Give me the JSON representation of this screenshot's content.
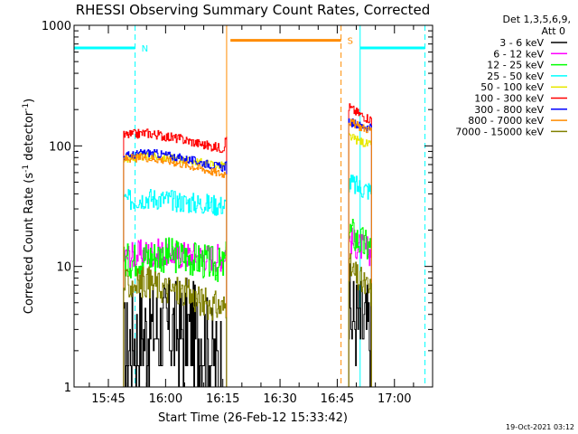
{
  "chart_data": {
    "type": "line",
    "title": "RHESSI Observing Summary Count Rates, Corrected",
    "xlabel": "Start Time (26-Feb-12 15:33:42)",
    "ylabel_parts": [
      "Corrected Count Rate (s",
      "-1",
      " detector",
      "-1",
      ")"
    ],
    "y_scale": "log",
    "ylim": [
      1,
      1000
    ],
    "y_ticks": [
      {
        "value": 1,
        "label": "1"
      },
      {
        "value": 10,
        "label": "10"
      },
      {
        "value": 100,
        "label": "100"
      },
      {
        "value": 1000,
        "label": "1000"
      }
    ],
    "xlim": [
      "15:36",
      "17:10"
    ],
    "x_ticks": [
      "15:45",
      "16:00",
      "16:15",
      "16:30",
      "16:45",
      "17:00"
    ],
    "legend": {
      "position": "outside-top-right",
      "header": [
        "Det 1,3,5,6,9,",
        "Att 0"
      ],
      "entries": [
        {
          "label": "3 - 6 keV",
          "color": "#000000"
        },
        {
          "label": "6 - 12 keV",
          "color": "#ff00ff"
        },
        {
          "label": "12 - 25 keV",
          "color": "#00ff00"
        },
        {
          "label": "25 - 50 keV",
          "color": "#00ffff"
        },
        {
          "label": "50 - 100 keV",
          "color": "#e8e800"
        },
        {
          "label": "100 - 300 keV",
          "color": "#ff0000"
        },
        {
          "label": "300 - 800 keV",
          "color": "#0000ff"
        },
        {
          "label": "800 - 7000 keV",
          "color": "#ff8c00"
        },
        {
          "label": "7000 - 15000 keV",
          "color": "#808000"
        }
      ]
    },
    "series": [
      {
        "name": "3 - 6 keV",
        "color": "#000000",
        "segments": [
          {
            "x": [
              "15:49",
              "15:52",
              "15:56",
              "16:00",
              "16:05",
              "16:10",
              "16:13",
              "16:15"
            ],
            "y": [
              2,
              2.5,
              3,
              3,
              3,
              2.5,
              1.5,
              2
            ]
          },
          {
            "x": [
              "16:48",
              "16:50",
              "16:52",
              "16:54"
            ],
            "y": [
              4,
              3.5,
              3,
              2.5
            ]
          }
        ]
      },
      {
        "name": "6 - 12 keV",
        "color": "#ff00ff",
        "segments": [
          {
            "x": [
              "15:49",
              "15:55",
              "16:00",
              "16:05",
              "16:10",
              "16:15",
              "16:16"
            ],
            "y": [
              12,
              13,
              13,
              12.5,
              12,
              12,
              15
            ]
          },
          {
            "x": [
              "16:48",
              "16:50",
              "16:52",
              "16:54"
            ],
            "y": [
              17,
              15,
              14,
              13
            ]
          }
        ]
      },
      {
        "name": "12 - 25 keV",
        "color": "#00ff00",
        "segments": [
          {
            "x": [
              "15:49",
              "15:55",
              "16:00",
              "16:05",
              "16:10",
              "16:15",
              "16:16"
            ],
            "y": [
              11,
              12,
              12.5,
              12,
              11,
              10,
              12
            ]
          },
          {
            "x": [
              "16:48",
              "16:50",
              "16:52",
              "16:54"
            ],
            "y": [
              20,
              17,
              15,
              14
            ]
          }
        ]
      },
      {
        "name": "25 - 50 keV",
        "color": "#00ffff",
        "segments": [
          {
            "x": [
              "15:49",
              "15:55",
              "16:00",
              "16:05",
              "16:10",
              "16:15",
              "16:16"
            ],
            "y": [
              35,
              37,
              36,
              34,
              33,
              32,
              32
            ]
          },
          {
            "x": [
              "16:48",
              "16:50",
              "16:52",
              "16:54"
            ],
            "y": [
              50,
              46,
              44,
              42
            ]
          }
        ]
      },
      {
        "name": "50 - 100 keV",
        "color": "#e8e800",
        "segments": [
          {
            "x": [
              "15:49",
              "15:55",
              "16:00",
              "16:05",
              "16:10",
              "16:15",
              "16:16"
            ],
            "y": [
              78,
              82,
              80,
              76,
              72,
              68,
              70
            ]
          },
          {
            "x": [
              "16:48",
              "16:50",
              "16:52",
              "16:54"
            ],
            "y": [
              120,
              112,
              106,
              100
            ]
          }
        ]
      },
      {
        "name": "100 - 300 keV",
        "color": "#ff0000",
        "segments": [
          {
            "x": [
              "15:49",
              "15:55",
              "16:00",
              "16:05",
              "16:10",
              "16:15",
              "16:16"
            ],
            "y": [
              122,
              128,
              120,
              112,
              102,
              95,
              120
            ]
          },
          {
            "x": [
              "16:48",
              "16:50",
              "16:52",
              "16:54"
            ],
            "y": [
              210,
              190,
              175,
              165
            ]
          }
        ]
      },
      {
        "name": "300 - 800 keV",
        "color": "#0000ff",
        "segments": [
          {
            "x": [
              "15:49",
              "15:55",
              "16:00",
              "16:05",
              "16:10",
              "16:15",
              "16:16"
            ],
            "y": [
              82,
              88,
              84,
              78,
              72,
              66,
              70
            ]
          },
          {
            "x": [
              "16:48",
              "16:50",
              "16:52",
              "16:54"
            ],
            "y": [
              160,
              150,
              145,
              140
            ]
          }
        ]
      },
      {
        "name": "800 - 7000 keV",
        "color": "#ff8c00",
        "segments": [
          {
            "x": [
              "15:49",
              "15:55",
              "16:00",
              "16:05",
              "16:10",
              "16:15",
              "16:16"
            ],
            "y": [
              78,
              80,
              76,
              70,
              64,
              58,
              62
            ]
          },
          {
            "x": [
              "16:48",
              "16:50",
              "16:52",
              "16:54"
            ],
            "y": [
              160,
              148,
              140,
              135
            ]
          }
        ]
      },
      {
        "name": "7000 - 15000 keV",
        "color": "#808000",
        "segments": [
          {
            "x": [
              "15:49",
              "15:55",
              "16:00",
              "16:05",
              "16:10",
              "16:15",
              "16:16"
            ],
            "y": [
              7,
              7.5,
              6.5,
              6,
              5,
              4.5,
              5
            ]
          },
          {
            "x": [
              "16:48",
              "16:50",
              "16:52",
              "16:54"
            ],
            "y": [
              10,
              8,
              7,
              6
            ]
          }
        ]
      }
    ],
    "flag_bars": [
      {
        "color": "#00ffff",
        "x": [
          "15:36",
          "15:52"
        ],
        "y": 650,
        "label": "N"
      },
      {
        "color": "#ff8c00",
        "x": [
          "16:17",
          "16:46"
        ],
        "y": 750,
        "label": "S"
      },
      {
        "color": "#00ffff",
        "x": [
          "16:51",
          "17:08"
        ],
        "y": 650,
        "label": ""
      }
    ],
    "vertical_markers": [
      {
        "x": "15:36",
        "color": "#00ffff",
        "style": "solid"
      },
      {
        "x": "15:52",
        "color": "#00ffff",
        "style": "dashed"
      },
      {
        "x": "16:16",
        "color": "#ff8c00",
        "style": "solid"
      },
      {
        "x": "16:46",
        "color": "#ff8c00",
        "style": "dashed"
      },
      {
        "x": "16:51",
        "color": "#00ffff",
        "style": "solid"
      },
      {
        "x": "17:08",
        "color": "#00ffff",
        "style": "dashed"
      }
    ],
    "footer_timestamp": "19-Oct-2021 03:12"
  }
}
